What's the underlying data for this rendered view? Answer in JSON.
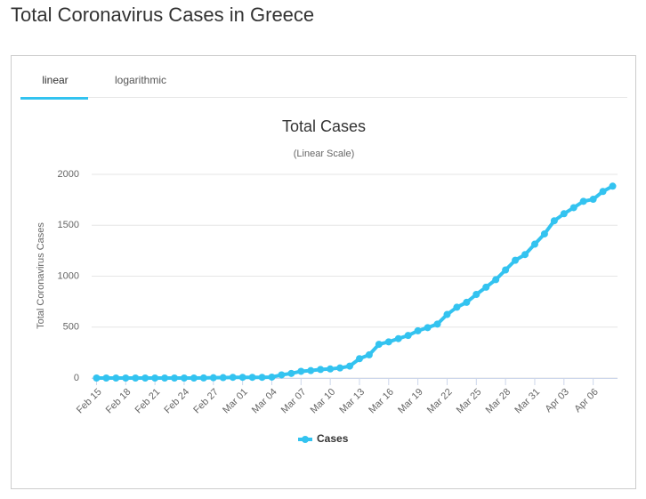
{
  "page": {
    "title": "Total Coronavirus Cases in Greece",
    "tabs": [
      "linear",
      "logarithmic"
    ]
  },
  "chart_data": {
    "type": "line",
    "title": "Total Cases",
    "subtitle": "(Linear Scale)",
    "y_label": "Total Coronavirus Cases",
    "categories": [
      "Feb 15",
      null,
      null,
      "Feb 18",
      null,
      null,
      "Feb 21",
      null,
      null,
      "Feb 24",
      null,
      null,
      "Feb 27",
      null,
      null,
      "Mar 01",
      null,
      null,
      "Mar 04",
      null,
      null,
      "Mar 07",
      null,
      null,
      "Mar 10",
      null,
      null,
      "Mar 13",
      null,
      null,
      "Mar 16",
      null,
      null,
      "Mar 19",
      null,
      null,
      "Mar 22",
      null,
      null,
      "Mar 25",
      null,
      null,
      "Mar 28",
      null,
      null,
      "Mar 31",
      null,
      null,
      "Apr 03",
      null,
      null,
      "Apr 06",
      null,
      null
    ],
    "series": [
      {
        "name": "Cases",
        "color": "#33c3f0",
        "values": [
          0,
          0,
          0,
          0,
          0,
          0,
          0,
          0,
          0,
          0,
          0,
          1,
          3,
          4,
          7,
          7,
          7,
          7,
          9,
          31,
          45,
          66,
          73,
          84,
          89,
          99,
          117,
          190,
          228,
          331,
          355,
          387,
          418,
          464,
          495,
          530,
          624,
          695,
          743,
          821,
          892,
          966,
          1061,
          1156,
          1212,
          1314,
          1415,
          1544,
          1613,
          1673,
          1735,
          1755,
          1832,
          1884
        ]
      }
    ],
    "ylim": [
      0,
      2000
    ],
    "yticks": [
      0,
      500,
      1000,
      1500,
      2000
    ],
    "grid": true,
    "legend": "bottom"
  }
}
